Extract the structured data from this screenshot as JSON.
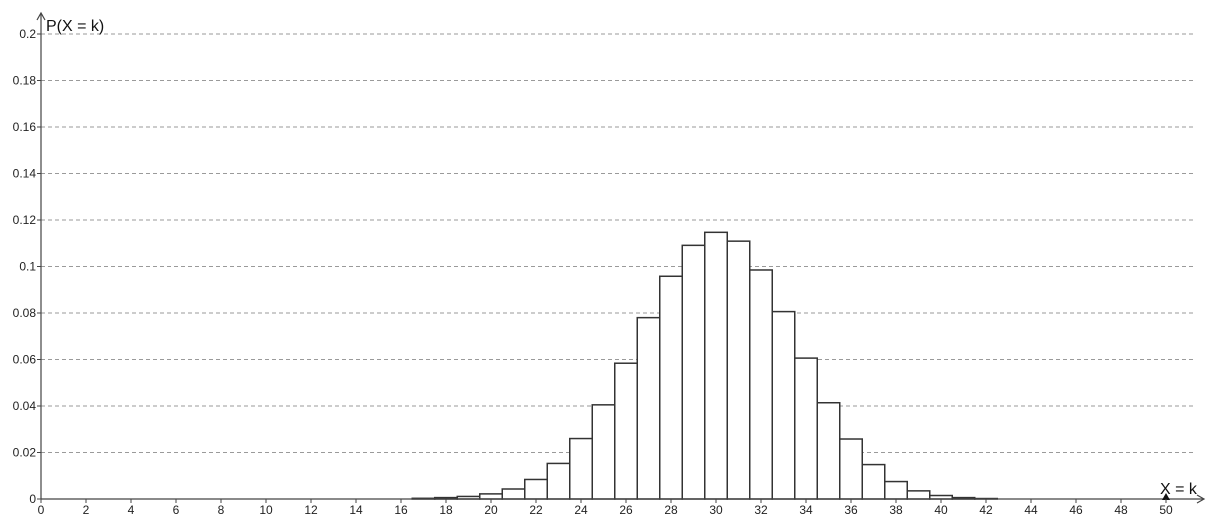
{
  "chart_data": {
    "type": "bar",
    "ylabel": "P(X = k)",
    "xlabel": "X = k",
    "xlim": [
      0,
      51
    ],
    "ylim": [
      0,
      0.2
    ],
    "grid": true,
    "grid_style": "dashed-horizontal",
    "x_ticks": [
      "0",
      "2",
      "4",
      "6",
      "8",
      "10",
      "12",
      "14",
      "16",
      "18",
      "20",
      "22",
      "24",
      "26",
      "28",
      "30",
      "32",
      "34",
      "36",
      "38",
      "40",
      "42",
      "44",
      "46",
      "48",
      "50"
    ],
    "y_ticks": [
      "0",
      "0.02",
      "0.04",
      "0.06",
      "0.08",
      "0.1",
      "0.12",
      "0.14",
      "0.16",
      "0.18",
      "0.2"
    ],
    "x": [
      17,
      18,
      19,
      20,
      21,
      22,
      23,
      24,
      25,
      26,
      27,
      28,
      29,
      30,
      31,
      32,
      33,
      34,
      35,
      36,
      37,
      38,
      39,
      40,
      41,
      42
    ],
    "values": [
      0.0003,
      0.0006,
      0.0011,
      0.0022,
      0.0043,
      0.0084,
      0.0153,
      0.026,
      0.0405,
      0.0584,
      0.078,
      0.0958,
      0.1091,
      0.1147,
      0.1109,
      0.0985,
      0.0806,
      0.0606,
      0.0414,
      0.0258,
      0.0148,
      0.0075,
      0.0035,
      0.0015,
      0.0006,
      0.0002
    ],
    "bar_color": "#ffffff",
    "bar_edge_color": "#333333"
  }
}
